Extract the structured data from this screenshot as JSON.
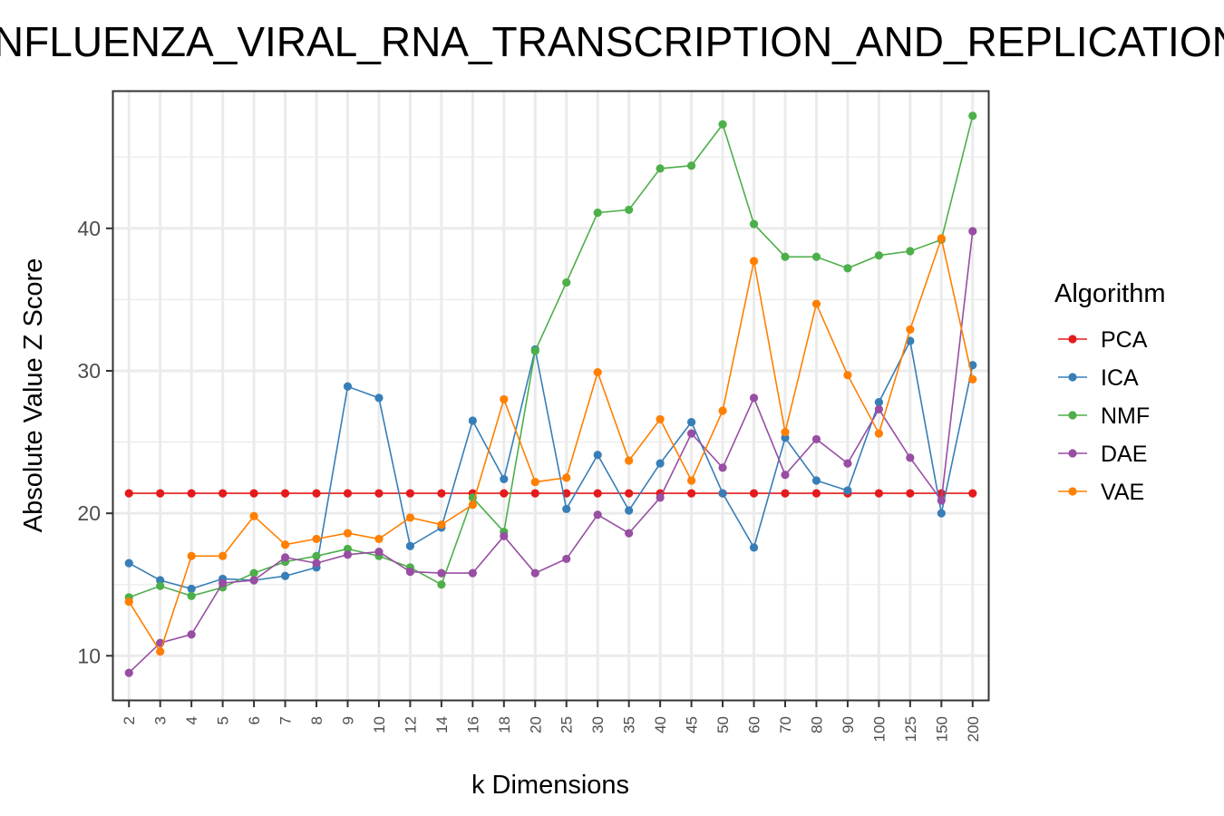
{
  "chart_data": {
    "type": "line",
    "title": "INFLUENZA_VIRAL_RNA_TRANSCRIPTION_AND_REPLICATION",
    "xlabel": "k Dimensions",
    "ylabel": "Absolute Value Z Score",
    "ylim": [
      6.9,
      49.6
    ],
    "yticks": [
      10,
      20,
      30,
      40
    ],
    "grid": true,
    "legend": {
      "title": "Algorithm",
      "position": "right"
    },
    "categories": [
      "2",
      "3",
      "4",
      "5",
      "6",
      "7",
      "8",
      "9",
      "10",
      "12",
      "14",
      "16",
      "18",
      "20",
      "25",
      "30",
      "35",
      "40",
      "45",
      "50",
      "60",
      "70",
      "80",
      "90",
      "100",
      "125",
      "150",
      "200"
    ],
    "series": [
      {
        "name": "PCA",
        "color": "#E41A1C",
        "values": [
          21.4,
          21.4,
          21.4,
          21.4,
          21.4,
          21.4,
          21.4,
          21.4,
          21.4,
          21.4,
          21.4,
          21.4,
          21.4,
          21.4,
          21.4,
          21.4,
          21.4,
          21.4,
          21.4,
          21.4,
          21.4,
          21.4,
          21.4,
          21.4,
          21.4,
          21.4,
          21.4,
          21.4
        ]
      },
      {
        "name": "ICA",
        "color": "#377EB8",
        "values": [
          16.5,
          15.3,
          14.7,
          15.4,
          15.3,
          15.6,
          16.2,
          28.9,
          28.1,
          17.7,
          19.0,
          26.5,
          22.4,
          31.5,
          20.3,
          24.1,
          20.2,
          23.5,
          26.4,
          21.4,
          17.6,
          25.3,
          22.3,
          21.6,
          27.8,
          32.1,
          20.0,
          30.4
        ]
      },
      {
        "name": "NMF",
        "color": "#4DAF4A",
        "values": [
          14.1,
          14.9,
          14.2,
          14.8,
          15.8,
          16.6,
          17.0,
          17.5,
          17.0,
          16.2,
          15.0,
          21.1,
          18.7,
          31.4,
          36.2,
          41.1,
          41.3,
          44.2,
          44.4,
          47.3,
          40.3,
          38.0,
          38.0,
          37.2,
          38.1,
          38.4,
          39.2,
          47.9
        ]
      },
      {
        "name": "DAE",
        "color": "#984EA3",
        "values": [
          8.8,
          10.9,
          11.5,
          15.1,
          15.3,
          16.9,
          16.5,
          17.1,
          17.3,
          15.9,
          15.8,
          15.8,
          18.4,
          15.8,
          16.8,
          19.9,
          18.6,
          21.1,
          25.6,
          23.2,
          28.1,
          22.7,
          25.2,
          23.5,
          27.3,
          23.9,
          20.9,
          39.8
        ]
      },
      {
        "name": "VAE",
        "color": "#FF7F00",
        "values": [
          13.8,
          10.3,
          17.0,
          17.0,
          19.8,
          17.8,
          18.2,
          18.6,
          18.2,
          19.7,
          19.2,
          20.6,
          28.0,
          22.2,
          22.5,
          29.9,
          23.7,
          26.6,
          22.3,
          27.2,
          37.7,
          25.7,
          34.7,
          29.7,
          25.6,
          32.9,
          39.3,
          29.4
        ]
      }
    ]
  }
}
